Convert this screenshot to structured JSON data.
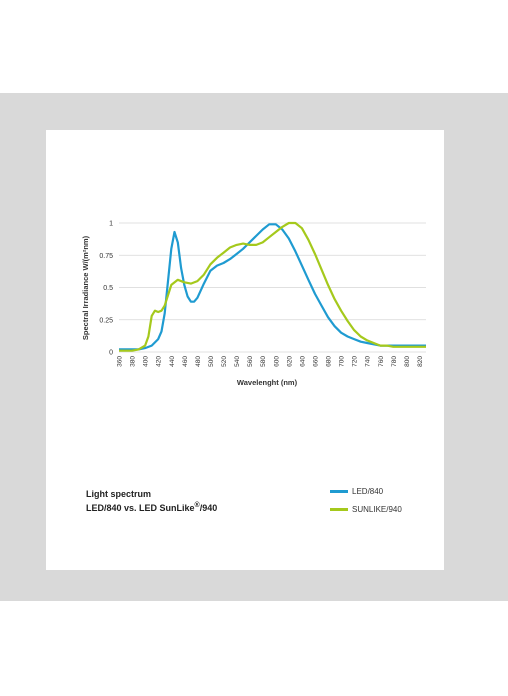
{
  "colors": {
    "background_band": "#d9d9d9",
    "led840": "#1f9bd1",
    "sunlike940": "#a5c91c",
    "grid": "#d6d6d6",
    "axis_text": "#333333"
  },
  "caption": {
    "line1": "Light spectrum",
    "line2_prefix": "LED/840 vs. LED SunLike",
    "registered": "®",
    "line2_suffix": "/940"
  },
  "chart_data": {
    "type": "line",
    "xlabel": "Wavelenght (nm)",
    "ylabel": "Spectral Irradiance  W/(m²nm)",
    "xlim": [
      360,
      830
    ],
    "ylim": [
      0,
      1
    ],
    "x_ticks": [
      "360",
      "380",
      "400",
      "420",
      "440",
      "460",
      "480",
      "500",
      "520",
      "540",
      "560",
      "580",
      "600",
      "620",
      "640",
      "660",
      "680",
      "700",
      "720",
      "740",
      "760",
      "780",
      "800",
      "820"
    ],
    "y_ticks": [
      "0",
      "0.25",
      "0.5",
      "0.75",
      "1"
    ],
    "y_tick_values": [
      0,
      0.25,
      0.5,
      0.75,
      1
    ],
    "grid": "horizontal",
    "legend_position": "below-right",
    "series": [
      {
        "name": "LED/840",
        "color_key": "led840",
        "x": [
          360,
          370,
          380,
          390,
          400,
          410,
          420,
          425,
          430,
          435,
          440,
          445,
          450,
          455,
          460,
          465,
          470,
          475,
          480,
          490,
          500,
          510,
          520,
          530,
          540,
          550,
          560,
          570,
          580,
          590,
          600,
          610,
          620,
          630,
          640,
          650,
          660,
          670,
          680,
          690,
          700,
          710,
          720,
          730,
          740,
          750,
          760,
          770,
          780,
          790,
          800,
          810,
          820,
          830
        ],
        "y": [
          0.02,
          0.02,
          0.02,
          0.02,
          0.03,
          0.05,
          0.1,
          0.16,
          0.3,
          0.55,
          0.8,
          0.93,
          0.85,
          0.65,
          0.52,
          0.43,
          0.39,
          0.39,
          0.42,
          0.53,
          0.63,
          0.67,
          0.69,
          0.72,
          0.76,
          0.8,
          0.85,
          0.9,
          0.95,
          0.99,
          0.99,
          0.95,
          0.88,
          0.78,
          0.67,
          0.56,
          0.45,
          0.36,
          0.27,
          0.2,
          0.15,
          0.12,
          0.1,
          0.08,
          0.07,
          0.06,
          0.05,
          0.05,
          0.05,
          0.05,
          0.05,
          0.05,
          0.05,
          0.05
        ]
      },
      {
        "name": "SUNLIKE/940",
        "color_key": "sunlike940",
        "x": [
          360,
          370,
          380,
          390,
          400,
          405,
          410,
          415,
          420,
          425,
          430,
          440,
          450,
          460,
          470,
          480,
          490,
          500,
          510,
          520,
          530,
          540,
          550,
          560,
          570,
          580,
          590,
          600,
          610,
          620,
          630,
          640,
          650,
          660,
          670,
          680,
          690,
          700,
          710,
          720,
          730,
          740,
          750,
          760,
          770,
          780,
          790,
          800,
          810,
          820,
          830
        ],
        "y": [
          0.01,
          0.01,
          0.01,
          0.02,
          0.05,
          0.12,
          0.28,
          0.32,
          0.31,
          0.32,
          0.36,
          0.52,
          0.56,
          0.54,
          0.53,
          0.55,
          0.6,
          0.68,
          0.73,
          0.77,
          0.81,
          0.83,
          0.84,
          0.83,
          0.83,
          0.85,
          0.89,
          0.93,
          0.97,
          1.0,
          1.0,
          0.96,
          0.87,
          0.76,
          0.64,
          0.52,
          0.41,
          0.32,
          0.24,
          0.17,
          0.12,
          0.09,
          0.07,
          0.05,
          0.05,
          0.04,
          0.04,
          0.04,
          0.04,
          0.04,
          0.04
        ]
      }
    ]
  }
}
